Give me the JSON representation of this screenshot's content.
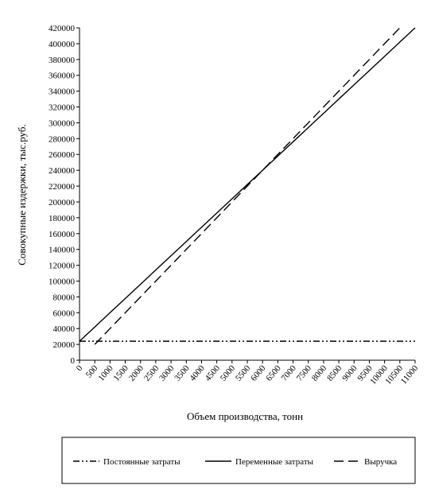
{
  "chart_data": {
    "type": "line",
    "y_label": "Совокупные издержки, тыс.руб.",
    "x_label": "Объем производства, тонн",
    "x": [
      0,
      500,
      1000,
      1500,
      2000,
      2500,
      3000,
      3500,
      4000,
      4500,
      5000,
      5500,
      6000,
      6500,
      7000,
      7500,
      8000,
      8500,
      9000,
      9500,
      10000,
      10500,
      11000
    ],
    "series": [
      {
        "name": "Постоянные затраты",
        "color": "#000000",
        "dash": "dashdotdot",
        "values": [
          24000,
          24000,
          24000,
          24000,
          24000,
          24000,
          24000,
          24000,
          24000,
          24000,
          24000,
          24000,
          24000,
          24000,
          24000,
          24000,
          24000,
          24000,
          24000,
          24000,
          24000,
          24000,
          24000
        ]
      },
      {
        "name": "Переменные затраты",
        "color": "#000000",
        "dash": "solid",
        "values": [
          24000,
          42000,
          60000,
          78000,
          96000,
          114000,
          132000,
          150000,
          168000,
          186000,
          204000,
          222000,
          240000,
          258000,
          276000,
          294000,
          312000,
          330000,
          348000,
          366000,
          384000,
          402000,
          420000
        ]
      },
      {
        "name": "Выручка",
        "color": "#000000",
        "dash": "dashed",
        "values": [
          null,
          20000,
          40000,
          60000,
          80000,
          100000,
          120000,
          140000,
          160000,
          180000,
          200000,
          220000,
          240000,
          260000,
          280000,
          300000,
          320000,
          340000,
          360000,
          380000,
          400000,
          420000,
          null
        ]
      }
    ],
    "xlim": [
      0,
      11000
    ],
    "xticks": [
      0,
      500,
      1000,
      1500,
      2000,
      2500,
      3000,
      3500,
      4000,
      4500,
      5000,
      5500,
      6000,
      6500,
      7000,
      7500,
      8000,
      8500,
      9000,
      9500,
      10000,
      10500,
      11000
    ],
    "ylim": [
      0,
      420000
    ],
    "yticks": [
      0,
      20000,
      40000,
      60000,
      80000,
      100000,
      120000,
      140000,
      160000,
      180000,
      200000,
      220000,
      240000,
      260000,
      280000,
      300000,
      320000,
      340000,
      360000,
      380000,
      400000,
      420000
    ],
    "legend": "bottom"
  }
}
